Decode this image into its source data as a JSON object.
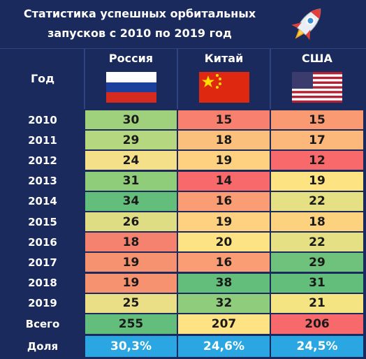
{
  "header": {
    "title": [
      "Статистика успешных орбитальных",
      "запусков с 2010 по 2019 год"
    ]
  },
  "table": {
    "columns": [
      "Год",
      "Россия",
      "Китай",
      "США"
    ],
    "rows": [
      {
        "year": "2010",
        "values": [
          30,
          15,
          15
        ],
        "colors": [
          "#9fd17d",
          "#f8806e",
          "#fa9a73"
        ]
      },
      {
        "year": "2011",
        "values": [
          29,
          18,
          17
        ],
        "colors": [
          "#b5d77f",
          "#fbc07c",
          "#fcb87a"
        ]
      },
      {
        "year": "2012",
        "values": [
          24,
          19,
          12
        ],
        "colors": [
          "#f5e08a",
          "#fdd17f",
          "#f8696b"
        ]
      },
      {
        "year": "2013",
        "values": [
          31,
          14,
          19
        ],
        "colors": [
          "#8fcd7b",
          "#f8696b",
          "#fee382"
        ]
      },
      {
        "year": "2014",
        "values": [
          34,
          16,
          22
        ],
        "colors": [
          "#63be7b",
          "#fa9d74",
          "#e5e083"
        ]
      },
      {
        "year": "2015",
        "values": [
          26,
          19,
          18
        ],
        "colors": [
          "#dfdd84",
          "#fdd17f",
          "#fdd27f"
        ]
      },
      {
        "year": "2016",
        "values": [
          18,
          20,
          22
        ],
        "colors": [
          "#f4826f",
          "#fde383",
          "#e5e083"
        ]
      },
      {
        "year": "2017",
        "values": [
          19,
          16,
          29
        ],
        "colors": [
          "#f6926f",
          "#fa9d74",
          "#6fc27b"
        ]
      },
      {
        "year": "2018",
        "values": [
          19,
          38,
          31
        ],
        "colors": [
          "#f6926f",
          "#63be7b",
          "#63be7b"
        ]
      },
      {
        "year": "2019",
        "values": [
          25,
          32,
          21
        ],
        "colors": [
          "#eadf86",
          "#8fcc7c",
          "#f4e482"
        ]
      }
    ],
    "total": {
      "label": "Всего",
      "values": [
        255,
        207,
        206
      ],
      "colors": [
        "#63be7b",
        "#fde383",
        "#f8696b"
      ]
    },
    "share": {
      "label": "Доля",
      "values": [
        "30,3%",
        "24,6%",
        "24,5%"
      ],
      "color": "#2aa7e2"
    }
  }
}
